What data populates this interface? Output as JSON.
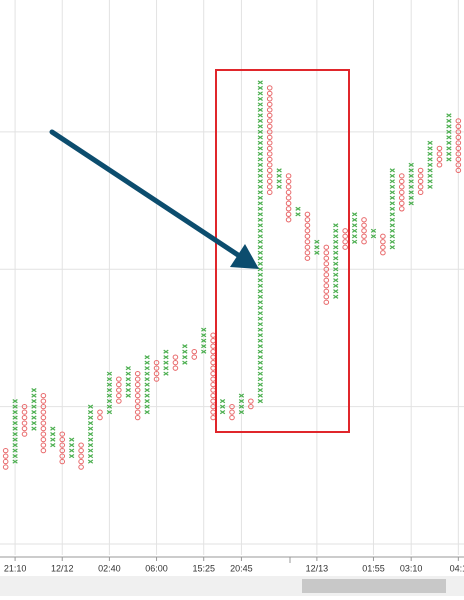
{
  "chart_data": {
    "type": "point_and_figure",
    "x_color": "#4caf50",
    "o_color": "#e8696b",
    "ylim": [
      0,
      101
    ],
    "yticks": [
      2,
      27,
      52,
      77
    ],
    "grid": true,
    "xlim": [
      -0.6,
      48.6
    ],
    "xticks": [
      {
        "value": 1,
        "label": "21:10"
      },
      {
        "value": 6,
        "label": "12/12"
      },
      {
        "value": 11,
        "label": "02:40"
      },
      {
        "value": 16,
        "label": "06:00"
      },
      {
        "value": 21,
        "label": "15:25"
      },
      {
        "value": 25,
        "label": "20:45"
      },
      {
        "value": 33,
        "label": "12/13"
      },
      {
        "value": 39,
        "label": "01:55"
      },
      {
        "value": 43,
        "label": "03:10"
      },
      {
        "value": 48,
        "label": "04:1"
      }
    ],
    "columns": [
      {
        "kind": "O",
        "high": 19,
        "low": 16
      },
      {
        "kind": "X",
        "high": 28,
        "low": 17
      },
      {
        "kind": "O",
        "high": 27,
        "low": 22
      },
      {
        "kind": "X",
        "high": 30,
        "low": 23
      },
      {
        "kind": "O",
        "high": 29,
        "low": 19
      },
      {
        "kind": "X",
        "high": 23,
        "low": 20
      },
      {
        "kind": "O",
        "high": 22,
        "low": 17
      },
      {
        "kind": "X",
        "high": 21,
        "low": 18
      },
      {
        "kind": "O",
        "high": 20,
        "low": 16
      },
      {
        "kind": "X",
        "high": 27,
        "low": 17
      },
      {
        "kind": "O",
        "high": 26,
        "low": 25
      },
      {
        "kind": "X",
        "high": 33,
        "low": 26
      },
      {
        "kind": "O",
        "high": 32,
        "low": 28
      },
      {
        "kind": "X",
        "high": 34,
        "low": 29
      },
      {
        "kind": "O",
        "high": 33,
        "low": 25
      },
      {
        "kind": "X",
        "high": 36,
        "low": 26
      },
      {
        "kind": "O",
        "high": 35,
        "low": 32
      },
      {
        "kind": "X",
        "high": 37,
        "low": 33
      },
      {
        "kind": "O",
        "high": 36,
        "low": 34
      },
      {
        "kind": "X",
        "high": 38,
        "low": 35
      },
      {
        "kind": "O",
        "high": 37,
        "low": 36
      },
      {
        "kind": "X",
        "high": 41,
        "low": 37
      },
      {
        "kind": "O",
        "high": 40,
        "low": 25
      },
      {
        "kind": "X",
        "high": 28,
        "low": 26
      },
      {
        "kind": "O",
        "high": 27,
        "low": 25
      },
      {
        "kind": "X",
        "high": 29,
        "low": 26
      },
      {
        "kind": "O",
        "high": 28,
        "low": 27
      },
      {
        "kind": "X",
        "high": 86,
        "low": 28
      },
      {
        "kind": "O",
        "high": 85,
        "low": 66
      },
      {
        "kind": "X",
        "high": 70,
        "low": 67
      },
      {
        "kind": "O",
        "high": 69,
        "low": 61
      },
      {
        "kind": "X",
        "high": 63,
        "low": 62
      },
      {
        "kind": "O",
        "high": 62,
        "low": 54
      },
      {
        "kind": "X",
        "high": 57,
        "low": 55
      },
      {
        "kind": "O",
        "high": 56,
        "low": 46
      },
      {
        "kind": "X",
        "high": 60,
        "low": 47
      },
      {
        "kind": "O",
        "high": 59,
        "low": 56
      },
      {
        "kind": "X",
        "high": 62,
        "low": 57
      },
      {
        "kind": "O",
        "high": 61,
        "low": 57
      },
      {
        "kind": "X",
        "high": 59,
        "low": 58
      },
      {
        "kind": "O",
        "high": 58,
        "low": 55
      },
      {
        "kind": "X",
        "high": 70,
        "low": 56
      },
      {
        "kind": "O",
        "high": 69,
        "low": 63
      },
      {
        "kind": "X",
        "high": 71,
        "low": 64
      },
      {
        "kind": "O",
        "high": 70,
        "low": 66
      },
      {
        "kind": "X",
        "high": 75,
        "low": 67
      },
      {
        "kind": "O",
        "high": 74,
        "low": 71
      },
      {
        "kind": "X",
        "high": 80,
        "low": 72
      },
      {
        "kind": "O",
        "high": 79,
        "low": 70
      }
    ]
  }
}
